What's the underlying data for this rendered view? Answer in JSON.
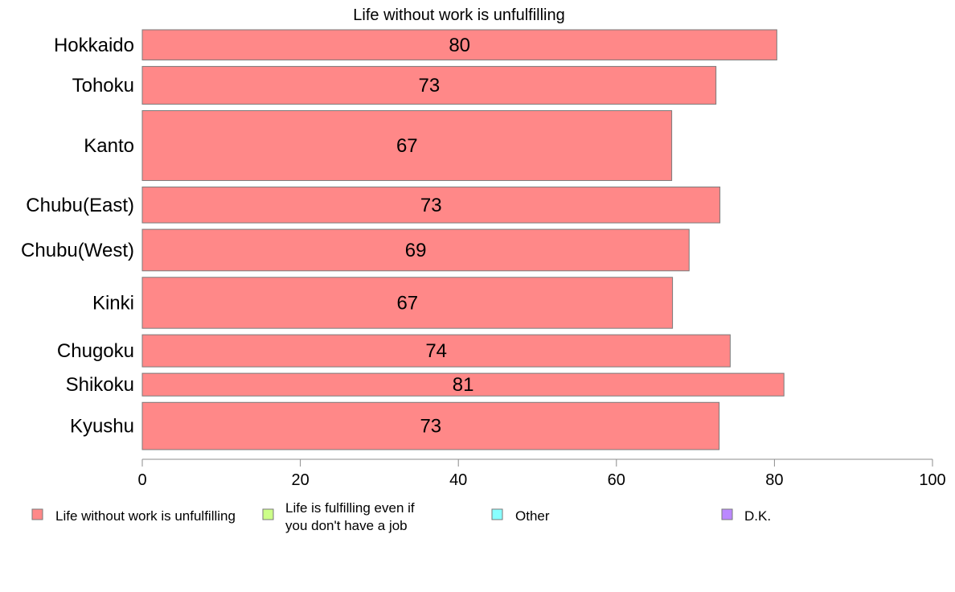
{
  "chart_data": {
    "type": "bar",
    "orientation": "horizontal",
    "title": "Life without work is unfulfilling",
    "categories": [
      "Hokkaido",
      "Tohoku",
      "Kanto",
      "Chubu(East)",
      "Chubu(West)",
      "Kinki",
      "Chugoku",
      "Shikoku",
      "Kyushu"
    ],
    "series": [
      {
        "name": "Life without work is unfulfilling",
        "color": "#ff8888",
        "values": [
          80.3,
          72.6,
          67.0,
          73.1,
          69.2,
          67.1,
          74.4,
          81.2,
          73.0
        ],
        "labels": [
          "80",
          "73",
          "67",
          "73",
          "69",
          "67",
          "74",
          "81",
          "73"
        ]
      }
    ],
    "sample_weights": [
      0.8,
      1.0,
      1.85,
      0.95,
      1.1,
      1.35,
      0.85,
      0.6,
      1.25
    ],
    "xlim": [
      0,
      100
    ],
    "xticks": [
      "0",
      "20",
      "40",
      "60",
      "80",
      "100"
    ],
    "grid": false,
    "legend": {
      "position": "bottom",
      "entries": [
        {
          "label": "Life without work is unfulfilling",
          "color": "#ff8888"
        },
        {
          "label": "Life is fulfilling even if you don't have a job",
          "line1": "Life is fulfilling even if",
          "line2": "you don't have a job",
          "color": "#ccff88"
        },
        {
          "label": "Other",
          "color": "#88ffff"
        },
        {
          "label": "D.K.",
          "color": "#bb88ff"
        }
      ]
    }
  }
}
